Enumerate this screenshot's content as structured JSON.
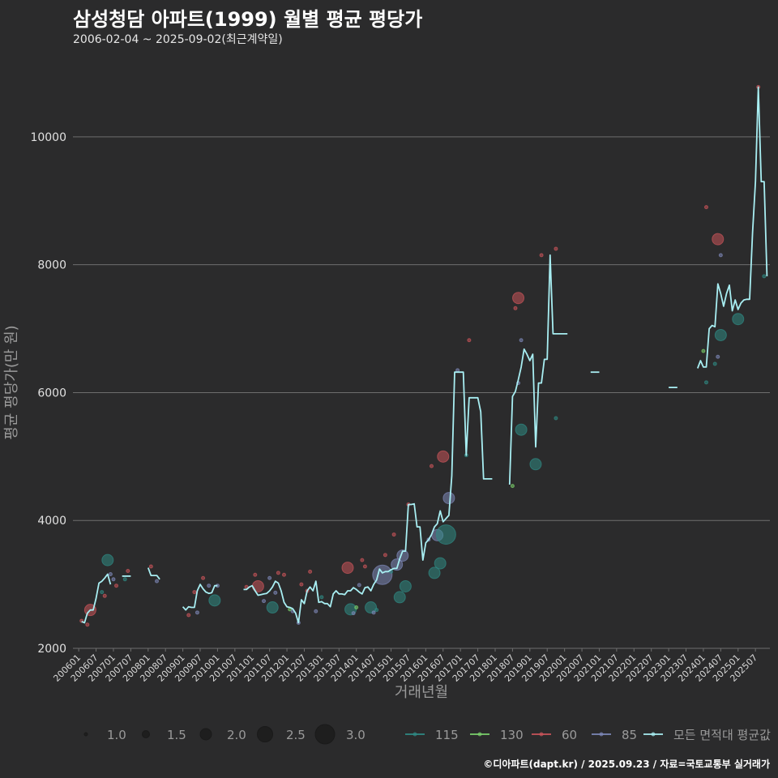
{
  "header": {
    "title": "삼성청담 아파트(1999) 월별 평균 평당가",
    "subtitle": "2006-02-04 ~ 2025-09-02(최근계약일)"
  },
  "caption": "©디아파트(dapt.kr) / 2025.09.23 / 자료=국토교통부 실거래가",
  "colors": {
    "background": "#2b2b2c",
    "grid": "#6e6e6e",
    "avg_line": "#a8eef2",
    "s115": "#2f8a84",
    "s130": "#7bd06b",
    "s60": "#c9545a",
    "s85": "#7d88b8"
  },
  "chart_data": {
    "type": "line",
    "xlabel": "거래년월",
    "ylabel": "평균 평당가(만 원)",
    "ylim": [
      2000,
      11000
    ],
    "xlim": [
      "2005-11",
      "2025-12"
    ],
    "y_ticks": [
      2000,
      4000,
      6000,
      8000,
      10000
    ],
    "x_ticks": [
      "200601",
      "200607",
      "200701",
      "200707",
      "200801",
      "200807",
      "200901",
      "200907",
      "201001",
      "201007",
      "201101",
      "201107",
      "201201",
      "201207",
      "201301",
      "201307",
      "201401",
      "201407",
      "201501",
      "201507",
      "201601",
      "201607",
      "201701",
      "201707",
      "201801",
      "201807",
      "201901",
      "201907",
      "202001",
      "202007",
      "202101",
      "202107",
      "202201",
      "202207",
      "202301",
      "202307",
      "202401",
      "202407",
      "202501",
      "202507"
    ],
    "grid": "horizontal",
    "legend_position": "bottom",
    "size_legend": {
      "values": [
        1.0,
        1.5,
        2.0,
        2.5,
        3.0
      ],
      "labels": [
        "1.0",
        "1.5",
        "2.0",
        "2.5",
        "3.0"
      ]
    },
    "series_legend": [
      "115",
      "130",
      "60",
      "85",
      "모든 면적대 평균값"
    ],
    "avg_line": [
      [
        "2006-02",
        2420
      ],
      [
        "2006-03",
        2400
      ],
      [
        "2006-04",
        2550
      ],
      [
        "2006-05",
        2600
      ],
      [
        "2006-06",
        2600
      ],
      [
        "2006-07",
        2780
      ],
      [
        "2006-08",
        3020
      ],
      [
        "2006-09",
        3050
      ],
      [
        "2006-10",
        3100
      ],
      [
        "2006-11",
        3160
      ],
      [
        "2006-12",
        3000
      ],
      null,
      [
        "2007-04",
        3130
      ],
      [
        "2007-05",
        3130
      ],
      [
        "2007-06",
        3130
      ],
      [
        "2007-07",
        3130
      ],
      null,
      [
        "2008-01",
        3260
      ],
      [
        "2008-02",
        3140
      ],
      [
        "2008-03",
        3140
      ],
      [
        "2008-04",
        3140
      ],
      [
        "2008-05",
        3080
      ],
      null,
      [
        "2009-01",
        2650
      ],
      [
        "2009-02",
        2600
      ],
      [
        "2009-03",
        2650
      ],
      [
        "2009-04",
        2640
      ],
      [
        "2009-05",
        2640
      ],
      [
        "2009-06",
        2900
      ],
      [
        "2009-07",
        3000
      ],
      [
        "2009-08",
        2930
      ],
      [
        "2009-09",
        2880
      ],
      [
        "2009-10",
        2860
      ],
      [
        "2009-11",
        2870
      ],
      [
        "2009-12",
        2980
      ],
      [
        "2010-01",
        2980
      ],
      null,
      [
        "2010-10",
        2920
      ],
      [
        "2010-11",
        2920
      ],
      [
        "2010-12",
        2960
      ],
      [
        "2011-01",
        2980
      ],
      [
        "2011-02",
        2900
      ],
      [
        "2011-03",
        2830
      ],
      [
        "2011-04",
        2840
      ],
      [
        "2011-05",
        2850
      ],
      [
        "2011-06",
        2860
      ],
      [
        "2011-07",
        2900
      ],
      [
        "2011-08",
        2960
      ],
      [
        "2011-09",
        3050
      ],
      [
        "2011-10",
        3020
      ],
      [
        "2011-11",
        2900
      ],
      [
        "2011-12",
        2720
      ],
      [
        "2012-01",
        2650
      ],
      [
        "2012-02",
        2640
      ],
      [
        "2012-03",
        2620
      ],
      [
        "2012-04",
        2550
      ],
      [
        "2012-05",
        2400
      ],
      [
        "2012-06",
        2760
      ],
      [
        "2012-07",
        2700
      ],
      [
        "2012-08",
        2900
      ],
      [
        "2012-09",
        2960
      ],
      [
        "2012-10",
        2900
      ],
      [
        "2012-11",
        3050
      ],
      [
        "2012-12",
        2720
      ],
      [
        "2013-01",
        2730
      ],
      [
        "2013-02",
        2700
      ],
      [
        "2013-03",
        2700
      ],
      [
        "2013-04",
        2650
      ],
      [
        "2013-05",
        2850
      ],
      [
        "2013-06",
        2900
      ],
      [
        "2013-07",
        2850
      ],
      [
        "2013-08",
        2850
      ],
      [
        "2013-09",
        2840
      ],
      [
        "2013-10",
        2900
      ],
      [
        "2013-11",
        2900
      ],
      [
        "2013-12",
        2950
      ],
      [
        "2014-01",
        2920
      ],
      [
        "2014-02",
        2880
      ],
      [
        "2014-03",
        2850
      ],
      [
        "2014-04",
        2950
      ],
      [
        "2014-05",
        2960
      ],
      [
        "2014-06",
        2900
      ],
      [
        "2014-07",
        3000
      ],
      [
        "2014-08",
        3070
      ],
      [
        "2014-09",
        3240
      ],
      [
        "2014-10",
        3180
      ],
      [
        "2014-11",
        3200
      ],
      [
        "2014-12",
        3200
      ],
      [
        "2015-01",
        3230
      ],
      [
        "2015-02",
        3250
      ],
      [
        "2015-03",
        3250
      ],
      [
        "2015-04",
        3400
      ],
      [
        "2015-05",
        3520
      ],
      [
        "2015-06",
        3520
      ],
      [
        "2015-07",
        4250
      ],
      [
        "2015-08",
        4250
      ],
      [
        "2015-09",
        4260
      ],
      [
        "2015-10",
        3900
      ],
      [
        "2015-11",
        3900
      ],
      [
        "2015-12",
        3380
      ],
      [
        "2016-01",
        3650
      ],
      [
        "2016-02",
        3700
      ],
      [
        "2016-03",
        3780
      ],
      [
        "2016-04",
        3900
      ],
      [
        "2016-05",
        3950
      ],
      [
        "2016-06",
        4150
      ],
      [
        "2016-07",
        3980
      ],
      [
        "2016-08",
        4030
      ],
      [
        "2016-09",
        4080
      ],
      [
        "2016-10",
        4700
      ],
      [
        "2016-11",
        6320
      ],
      [
        "2016-12",
        6320
      ],
      [
        "2017-01",
        6320
      ],
      [
        "2017-02",
        6320
      ],
      [
        "2017-03",
        5020
      ],
      [
        "2017-04",
        5920
      ],
      [
        "2017-05",
        5920
      ],
      [
        "2017-06",
        5920
      ],
      [
        "2017-07",
        5920
      ],
      [
        "2017-08",
        5700
      ],
      [
        "2017-09",
        4650
      ],
      [
        "2017-10",
        4650
      ],
      [
        "2017-11",
        4650
      ],
      [
        "2017-12",
        4650
      ],
      null,
      [
        "2018-06",
        4560
      ],
      [
        "2018-07",
        5940
      ],
      [
        "2018-08",
        6020
      ],
      [
        "2018-09",
        6200
      ],
      [
        "2018-10",
        6400
      ],
      [
        "2018-11",
        6680
      ],
      [
        "2018-12",
        6600
      ],
      [
        "2019-01",
        6500
      ],
      [
        "2019-02",
        6600
      ],
      [
        "2019-03",
        5150
      ],
      [
        "2019-04",
        6150
      ],
      [
        "2019-05",
        6150
      ],
      [
        "2019-06",
        6520
      ],
      [
        "2019-07",
        6520
      ],
      [
        "2019-08",
        8150
      ],
      [
        "2019-09",
        6920
      ],
      [
        "2019-10",
        6920
      ],
      [
        "2019-11",
        6920
      ],
      [
        "2019-12",
        6920
      ],
      [
        "2020-01",
        6920
      ],
      [
        "2020-02",
        6920
      ],
      null,
      [
        "2020-10",
        6320
      ],
      [
        "2020-11",
        6320
      ],
      [
        "2020-12",
        6320
      ],
      [
        "2021-01",
        6320
      ],
      null,
      [
        "2023-01",
        6080
      ],
      [
        "2023-02",
        6080
      ],
      [
        "2023-03",
        6080
      ],
      [
        "2023-04",
        6080
      ],
      null,
      [
        "2023-11",
        6380
      ],
      [
        "2023-12",
        6500
      ],
      [
        "2024-01",
        6400
      ],
      [
        "2024-02",
        6400
      ],
      [
        "2024-03",
        7000
      ],
      [
        "2024-04",
        7050
      ],
      [
        "2024-05",
        7030
      ],
      [
        "2024-06",
        7700
      ],
      [
        "2024-07",
        7550
      ],
      [
        "2024-08",
        7350
      ],
      [
        "2024-09",
        7550
      ],
      [
        "2024-10",
        7680
      ],
      [
        "2024-11",
        7280
      ],
      [
        "2024-12",
        7450
      ],
      [
        "2025-01",
        7300
      ],
      [
        "2025-02",
        7400
      ],
      [
        "2025-03",
        7450
      ],
      [
        "2025-04",
        7460
      ],
      [
        "2025-05",
        7460
      ],
      [
        "2025-06",
        8500
      ],
      [
        "2025-07",
        9300
      ],
      [
        "2025-08",
        10780
      ],
      [
        "2025-09",
        9300
      ],
      [
        "2025-10",
        9300
      ],
      [
        "2025-11",
        7820
      ]
    ],
    "points": [
      {
        "s": "115",
        "x": "2006-11",
        "y": 3380,
        "size": 2.0
      },
      {
        "s": "60",
        "x": "2006-05",
        "y": 2600,
        "size": 2.0
      },
      {
        "s": "60",
        "x": "2006-04",
        "y": 2370,
        "size": 1.0
      },
      {
        "s": "60",
        "x": "2006-02",
        "y": 2430,
        "size": 1.0
      },
      {
        "s": "115",
        "x": "2006-09",
        "y": 2880,
        "size": 1.0
      },
      {
        "s": "60",
        "x": "2006-10",
        "y": 2820,
        "size": 1.0
      },
      {
        "s": "85",
        "x": "2006-12",
        "y": 3160,
        "size": 1.0
      },
      {
        "s": "85",
        "x": "2007-01",
        "y": 3080,
        "size": 1.0
      },
      {
        "s": "60",
        "x": "2007-02",
        "y": 2980,
        "size": 1.0
      },
      {
        "s": "60",
        "x": "2007-06",
        "y": 3210,
        "size": 1.0
      },
      {
        "s": "115",
        "x": "2007-05",
        "y": 3080,
        "size": 1.0
      },
      {
        "s": "60",
        "x": "2008-02",
        "y": 3280,
        "size": 1.0
      },
      {
        "s": "85",
        "x": "2008-04",
        "y": 3050,
        "size": 1.0
      },
      {
        "s": "60",
        "x": "2009-03",
        "y": 2520,
        "size": 1.0
      },
      {
        "s": "60",
        "x": "2009-05",
        "y": 2880,
        "size": 1.0
      },
      {
        "s": "85",
        "x": "2009-06",
        "y": 2560,
        "size": 1.0
      },
      {
        "s": "60",
        "x": "2009-08",
        "y": 3100,
        "size": 1.0
      },
      {
        "s": "85",
        "x": "2009-10",
        "y": 2980,
        "size": 1.0
      },
      {
        "s": "115",
        "x": "2009-12",
        "y": 2750,
        "size": 2.0
      },
      {
        "s": "85",
        "x": "2010-01",
        "y": 2980,
        "size": 1.0
      },
      {
        "s": "60",
        "x": "2010-11",
        "y": 2960,
        "size": 1.0
      },
      {
        "s": "60",
        "x": "2011-02",
        "y": 3150,
        "size": 1.0
      },
      {
        "s": "60",
        "x": "2011-03",
        "y": 2970,
        "size": 2.0
      },
      {
        "s": "85",
        "x": "2011-05",
        "y": 2740,
        "size": 1.0
      },
      {
        "s": "85",
        "x": "2011-07",
        "y": 3100,
        "size": 1.0
      },
      {
        "s": "115",
        "x": "2011-08",
        "y": 2640,
        "size": 2.0
      },
      {
        "s": "85",
        "x": "2011-09",
        "y": 2870,
        "size": 1.0
      },
      {
        "s": "60",
        "x": "2011-10",
        "y": 3180,
        "size": 1.0
      },
      {
        "s": "60",
        "x": "2011-12",
        "y": 3150,
        "size": 1.0
      },
      {
        "s": "130",
        "x": "2012-02",
        "y": 2610,
        "size": 1.0
      },
      {
        "s": "85",
        "x": "2012-03",
        "y": 2580,
        "size": 1.0
      },
      {
        "s": "85",
        "x": "2012-05",
        "y": 2400,
        "size": 1.0
      },
      {
        "s": "60",
        "x": "2012-06",
        "y": 3000,
        "size": 1.0
      },
      {
        "s": "60",
        "x": "2012-08",
        "y": 2900,
        "size": 1.0
      },
      {
        "s": "60",
        "x": "2012-09",
        "y": 3200,
        "size": 1.0
      },
      {
        "s": "85",
        "x": "2012-11",
        "y": 2580,
        "size": 1.0
      },
      {
        "s": "115",
        "x": "2013-01",
        "y": 2800,
        "size": 1.0
      },
      {
        "s": "60",
        "x": "2013-10",
        "y": 3260,
        "size": 2.0
      },
      {
        "s": "115",
        "x": "2013-11",
        "y": 2610,
        "size": 2.0
      },
      {
        "s": "85",
        "x": "2013-12",
        "y": 2550,
        "size": 1.0
      },
      {
        "s": "130",
        "x": "2014-01",
        "y": 2640,
        "size": 1.0
      },
      {
        "s": "85",
        "x": "2014-02",
        "y": 2990,
        "size": 1.0
      },
      {
        "s": "60",
        "x": "2014-03",
        "y": 3380,
        "size": 1.0
      },
      {
        "s": "60",
        "x": "2014-04",
        "y": 3280,
        "size": 1.0
      },
      {
        "s": "115",
        "x": "2014-06",
        "y": 2640,
        "size": 2.0
      },
      {
        "s": "85",
        "x": "2014-07",
        "y": 2560,
        "size": 1.0
      },
      {
        "s": "115",
        "x": "2014-08",
        "y": 2600,
        "size": 1.0
      },
      {
        "s": "85",
        "x": "2014-10",
        "y": 3150,
        "size": 3.0
      },
      {
        "s": "60",
        "x": "2014-11",
        "y": 3460,
        "size": 1.0
      },
      {
        "s": "115",
        "x": "2015-01",
        "y": 3200,
        "size": 1.0
      },
      {
        "s": "60",
        "x": "2015-02",
        "y": 3780,
        "size": 1.0
      },
      {
        "s": "85",
        "x": "2015-03",
        "y": 3310,
        "size": 2.0
      },
      {
        "s": "115",
        "x": "2015-04",
        "y": 2800,
        "size": 2.0
      },
      {
        "s": "85",
        "x": "2015-05",
        "y": 3450,
        "size": 2.0
      },
      {
        "s": "115",
        "x": "2015-06",
        "y": 2970,
        "size": 2.0
      },
      {
        "s": "60",
        "x": "2015-07",
        "y": 4250,
        "size": 1.0
      },
      {
        "s": "60",
        "x": "2016-03",
        "y": 4850,
        "size": 1.0
      },
      {
        "s": "85",
        "x": "2016-02",
        "y": 3700,
        "size": 1.0
      },
      {
        "s": "115",
        "x": "2016-04",
        "y": 3180,
        "size": 2.0
      },
      {
        "s": "85",
        "x": "2016-05",
        "y": 3770,
        "size": 2.0
      },
      {
        "s": "115",
        "x": "2016-06",
        "y": 3330,
        "size": 2.0
      },
      {
        "s": "60",
        "x": "2016-07",
        "y": 5000,
        "size": 2.0
      },
      {
        "s": "115",
        "x": "2016-08",
        "y": 3780,
        "size": 3.0
      },
      {
        "s": "85",
        "x": "2016-09",
        "y": 4350,
        "size": 2.0
      },
      {
        "s": "85",
        "x": "2016-12",
        "y": 6350,
        "size": 1.0
      },
      {
        "s": "115",
        "x": "2017-03",
        "y": 5020,
        "size": 1.0
      },
      {
        "s": "60",
        "x": "2017-04",
        "y": 6820,
        "size": 1.0
      },
      {
        "s": "130",
        "x": "2018-07",
        "y": 4540,
        "size": 1.0
      },
      {
        "s": "60",
        "x": "2018-08",
        "y": 7320,
        "size": 1.0
      },
      {
        "s": "60",
        "x": "2018-09",
        "y": 7480,
        "size": 2.0
      },
      {
        "s": "85",
        "x": "2018-10",
        "y": 6820,
        "size": 1.0
      },
      {
        "s": "85",
        "x": "2018-09",
        "y": 6150,
        "size": 1.0
      },
      {
        "s": "115",
        "x": "2018-10",
        "y": 5420,
        "size": 2.0
      },
      {
        "s": "115",
        "x": "2019-03",
        "y": 4880,
        "size": 2.0
      },
      {
        "s": "60",
        "x": "2019-05",
        "y": 8150,
        "size": 1.0
      },
      {
        "s": "60",
        "x": "2019-10",
        "y": 8250,
        "size": 1.0
      },
      {
        "s": "115",
        "x": "2019-10",
        "y": 5600,
        "size": 1.0
      },
      {
        "s": "60",
        "x": "2024-02",
        "y": 8900,
        "size": 1.0
      },
      {
        "s": "60",
        "x": "2024-06",
        "y": 8400,
        "size": 2.0
      },
      {
        "s": "115",
        "x": "2024-07",
        "y": 6900,
        "size": 2.0
      },
      {
        "s": "85",
        "x": "2024-07",
        "y": 8150,
        "size": 1.0
      },
      {
        "s": "130",
        "x": "2024-01",
        "y": 6650,
        "size": 1.0
      },
      {
        "s": "115",
        "x": "2024-02",
        "y": 6160,
        "size": 1.0
      },
      {
        "s": "115",
        "x": "2024-05",
        "y": 6450,
        "size": 1.0
      },
      {
        "s": "85",
        "x": "2024-06",
        "y": 6560,
        "size": 1.0
      },
      {
        "s": "115",
        "x": "2025-01",
        "y": 7150,
        "size": 2.0
      },
      {
        "s": "60",
        "x": "2025-08",
        "y": 10780,
        "size": 1.0
      },
      {
        "s": "115",
        "x": "2025-10",
        "y": 7820,
        "size": 1.0
      }
    ]
  }
}
